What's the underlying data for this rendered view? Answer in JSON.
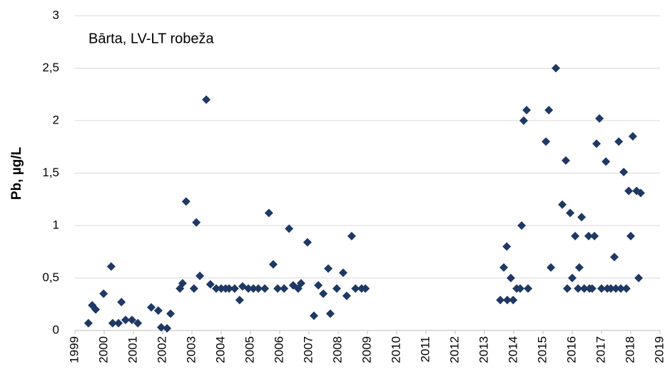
{
  "chart_data": {
    "type": "scatter",
    "annotation": "Bārta, LV-LT robeža",
    "ylabel": "Pb, µg/L",
    "color": "#1f3864",
    "grid": true,
    "xlim": [
      1999,
      2019
    ],
    "xticks": [
      1999,
      2000,
      2001,
      2002,
      2003,
      2004,
      2005,
      2006,
      2007,
      2008,
      2009,
      2010,
      2011,
      2012,
      2013,
      2014,
      2015,
      2016,
      2017,
      2018,
      2019
    ],
    "ylim": [
      0,
      3
    ],
    "yticks": [
      0,
      {
        "value": 0.5,
        "label": "0,5"
      },
      1,
      {
        "value": 1.5,
        "label": "1,5"
      },
      2,
      {
        "value": 2.5,
        "label": "2,5"
      },
      3
    ],
    "x": [
      1999.46,
      1999.59,
      1999.71,
      1999.98,
      2000.24,
      2000.29,
      2000.49,
      2000.59,
      2000.73,
      2000.95,
      2001.15,
      2001.61,
      2001.85,
      2001.95,
      2002.15,
      2002.27,
      2002.59,
      2002.68,
      2002.8,
      2003.07,
      2003.15,
      2003.27,
      2003.49,
      2003.63,
      2003.83,
      2004.0,
      2004.15,
      2004.27,
      2004.46,
      2004.63,
      2004.73,
      2004.93,
      2005.1,
      2005.27,
      2005.49,
      2005.63,
      2005.78,
      2005.93,
      2006.15,
      2006.32,
      2006.46,
      2006.63,
      2006.73,
      2006.95,
      2007.17,
      2007.32,
      2007.49,
      2007.66,
      2007.73,
      2007.95,
      2008.17,
      2008.29,
      2008.46,
      2008.59,
      2008.8,
      2008.93,
      2013.54,
      2013.66,
      2013.76,
      2013.78,
      2013.9,
      2013.98,
      2014.1,
      2014.22,
      2014.27,
      2014.34,
      2014.44,
      2014.49,
      2015.1,
      2015.2,
      2015.27,
      2015.44,
      2015.66,
      2015.78,
      2015.83,
      2015.93,
      2016.0,
      2016.1,
      2016.2,
      2016.24,
      2016.32,
      2016.41,
      2016.56,
      2016.59,
      2016.68,
      2016.76,
      2016.83,
      2016.93,
      2017.0,
      2017.15,
      2017.2,
      2017.32,
      2017.44,
      2017.49,
      2017.59,
      2017.66,
      2017.76,
      2017.85,
      2017.93,
      2018.0,
      2018.07,
      2018.2,
      2018.27,
      2018.34
    ],
    "values": [
      0.07,
      0.24,
      0.2,
      0.35,
      0.61,
      0.07,
      0.07,
      0.27,
      0.1,
      0.1,
      0.07,
      0.22,
      0.19,
      0.03,
      0.02,
      0.16,
      0.4,
      0.45,
      1.23,
      0.4,
      1.03,
      0.52,
      2.2,
      0.44,
      0.4,
      0.4,
      0.4,
      0.4,
      0.4,
      0.29,
      0.42,
      0.4,
      0.4,
      0.4,
      0.4,
      1.12,
      0.63,
      0.4,
      0.4,
      0.97,
      0.43,
      0.4,
      0.45,
      0.84,
      0.14,
      0.43,
      0.35,
      0.59,
      0.16,
      0.4,
      0.55,
      0.33,
      0.9,
      0.4,
      0.4,
      0.4,
      0.29,
      0.6,
      0.8,
      0.29,
      0.5,
      0.29,
      0.4,
      0.4,
      1.0,
      2.0,
      2.1,
      0.4,
      1.8,
      2.1,
      0.6,
      2.5,
      1.2,
      1.62,
      0.4,
      1.12,
      0.5,
      0.9,
      0.4,
      0.6,
      1.08,
      0.4,
      0.9,
      0.4,
      0.4,
      0.9,
      1.78,
      2.02,
      0.4,
      1.61,
      0.4,
      0.4,
      0.7,
      0.4,
      1.8,
      0.4,
      1.51,
      0.4,
      1.33,
      0.9,
      1.85,
      1.33,
      0.5,
      1.31
    ]
  }
}
